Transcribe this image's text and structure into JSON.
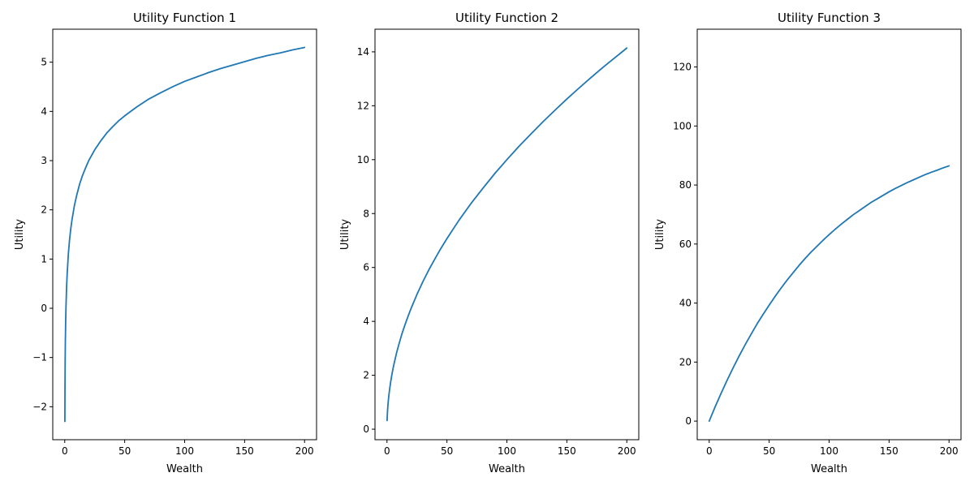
{
  "figure": {
    "background": "#ffffff"
  },
  "chart_data": [
    {
      "type": "line",
      "title": "Utility Function 1",
      "xlabel": "Wealth",
      "ylabel": "Utility",
      "xlim": [
        -10,
        210
      ],
      "ylim": [
        -2.67,
        5.67
      ],
      "xticks": [
        0,
        50,
        100,
        150,
        200
      ],
      "yticks": [
        -2,
        -1,
        0,
        1,
        2,
        3,
        4,
        5
      ],
      "color": "#1f77b4",
      "grid": false,
      "series": [
        {
          "x": [
            0.1,
            0.2,
            0.35,
            0.5,
            0.75,
            1,
            1.5,
            2,
            3,
            4,
            5,
            6,
            8,
            10,
            12.5,
            15,
            17.5,
            20,
            25,
            30,
            35,
            40,
            45,
            50,
            60,
            70,
            80,
            90,
            100,
            110,
            120,
            130,
            140,
            150,
            160,
            170,
            180,
            190,
            200
          ],
          "y": [
            -2.3,
            -1.61,
            -1.05,
            -0.69,
            -0.29,
            0,
            0.41,
            0.69,
            1.1,
            1.39,
            1.61,
            1.79,
            2.08,
            2.3,
            2.53,
            2.71,
            2.86,
            3,
            3.22,
            3.4,
            3.56,
            3.69,
            3.81,
            3.91,
            4.09,
            4.25,
            4.38,
            4.5,
            4.61,
            4.7,
            4.79,
            4.87,
            4.94,
            5.01,
            5.08,
            5.14,
            5.19,
            5.25,
            5.3
          ]
        }
      ]
    },
    {
      "type": "line",
      "title": "Utility Function 2",
      "xlabel": "Wealth",
      "ylabel": "Utility",
      "xlim": [
        -10,
        210
      ],
      "ylim": [
        -0.39,
        14.84
      ],
      "xticks": [
        0,
        50,
        100,
        150,
        200
      ],
      "yticks": [
        0,
        2,
        4,
        6,
        8,
        10,
        12,
        14
      ],
      "color": "#1f77b4",
      "grid": false,
      "series": [
        {
          "x": [
            0.1,
            0.2,
            0.35,
            0.5,
            0.75,
            1,
            1.5,
            2,
            3,
            4,
            5,
            6,
            8,
            10,
            12.5,
            15,
            17.5,
            20,
            25,
            30,
            35,
            40,
            45,
            50,
            60,
            70,
            80,
            90,
            100,
            110,
            120,
            130,
            140,
            150,
            160,
            170,
            180,
            190,
            200
          ],
          "y": [
            0.32,
            0.45,
            0.59,
            0.71,
            0.87,
            1,
            1.22,
            1.41,
            1.73,
            2,
            2.24,
            2.45,
            2.83,
            3.16,
            3.54,
            3.87,
            4.18,
            4.47,
            5,
            5.48,
            5.92,
            6.32,
            6.71,
            7.07,
            7.75,
            8.37,
            8.94,
            9.49,
            10,
            10.49,
            10.95,
            11.4,
            11.83,
            12.25,
            12.65,
            13.04,
            13.42,
            13.78,
            14.14
          ]
        }
      ]
    },
    {
      "type": "line",
      "title": "Utility Function 3",
      "xlabel": "Wealth",
      "ylabel": "Utility",
      "xlim": [
        -10,
        210
      ],
      "ylim": [
        -6.3,
        132.8
      ],
      "xticks": [
        0,
        50,
        100,
        150,
        200
      ],
      "yticks": [
        0,
        20,
        40,
        60,
        80,
        100,
        120
      ],
      "color": "#1f77b4",
      "grid": false,
      "series": [
        {
          "x": [
            0,
            5,
            10,
            15,
            20,
            25,
            30,
            35,
            40,
            45,
            50,
            55,
            60,
            65,
            70,
            75,
            80,
            85,
            90,
            95,
            100,
            105,
            110,
            115,
            120,
            125,
            130,
            135,
            140,
            145,
            150,
            155,
            160,
            165,
            170,
            175,
            180,
            185,
            190,
            195,
            200
          ],
          "y": [
            0,
            4.9,
            9.5,
            13.9,
            18.1,
            22.1,
            25.9,
            29.5,
            33,
            36.2,
            39.3,
            42.3,
            45.1,
            47.8,
            50.3,
            52.8,
            55.1,
            57.3,
            59.3,
            61.3,
            63.2,
            65,
            66.7,
            68.3,
            69.9,
            71.3,
            72.7,
            74.1,
            75.3,
            76.5,
            77.7,
            78.8,
            79.8,
            80.8,
            81.7,
            82.6,
            83.5,
            84.3,
            85,
            85.8,
            86.5
          ]
        }
      ]
    }
  ]
}
